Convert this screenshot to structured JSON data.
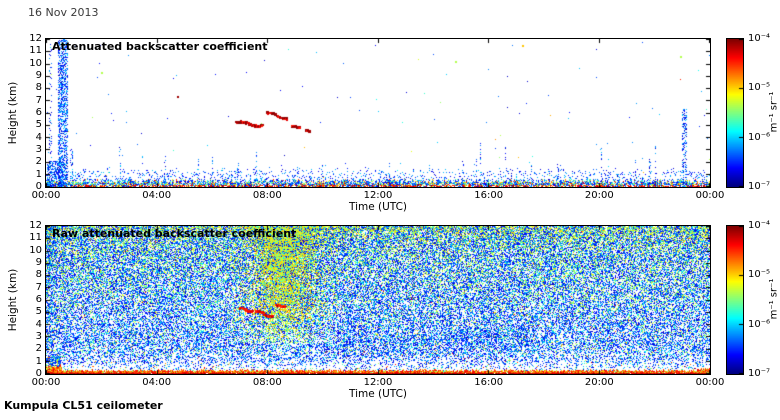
{
  "page": {
    "date_label": "16 Nov 2013",
    "footer_label": "Kumpula CL51 ceilometer"
  },
  "axes": {
    "xlabel": "Time (UTC)",
    "ylabel": "Height (km)",
    "time_ticks": [
      "00:00",
      "04:00",
      "08:00",
      "12:00",
      "16:00",
      "20:00",
      "00:00"
    ],
    "height_ticks": [
      "0",
      "1",
      "2",
      "3",
      "4",
      "5",
      "6",
      "7",
      "8",
      "9",
      "10",
      "11",
      "12"
    ]
  },
  "colorbar": {
    "tick_labels": [
      "10⁻⁴",
      "10⁻⁵",
      "10⁻⁶",
      "10⁻⁷"
    ],
    "unit_label": "m⁻¹ sr⁻¹",
    "colormap": "jet",
    "scale": "log",
    "range_min": "1e-7",
    "range_max": "1e-4"
  },
  "chart_data": [
    {
      "type": "heatmap",
      "title": "Attenuated backscatter coefficient",
      "xlabel": "Time (UTC)",
      "ylabel": "Height (km)",
      "x_range_hours": [
        0,
        24
      ],
      "y_range_km": [
        0,
        12
      ],
      "value_range": [
        "1e-7",
        "1e-4"
      ],
      "colormap": "jet",
      "x_ticks": [
        "00:00",
        "04:00",
        "08:00",
        "12:00",
        "16:00",
        "20:00",
        "00:00"
      ],
      "y_ticks": [
        0,
        1,
        2,
        3,
        4,
        5,
        6,
        7,
        8,
        9,
        10,
        11,
        12
      ],
      "colorbar_ticks": [
        "1e-4",
        "1e-5",
        "1e-6",
        "1e-7"
      ],
      "seed": 20131116,
      "features": {
        "surface_layer": {
          "top_km": 0.5,
          "description": "dense multicolour aerosol/backscatter layer along the ground"
        },
        "streaks": [
          {
            "h0": 0.1,
            "h1": 0.22,
            "top_km": 12,
            "density": 0.16
          },
          {
            "h0": 0.45,
            "h1": 0.78,
            "top_km": 12,
            "density": 0.5
          },
          {
            "h0": 0.02,
            "h1": 0.6,
            "top_km": 2.1,
            "density": 0.5
          },
          {
            "h0": 0.85,
            "h1": 0.98,
            "top_km": 3.2,
            "density": 0.3
          },
          {
            "h0": 23.0,
            "h1": 23.18,
            "top_km": 6.3,
            "density": 0.32
          }
        ],
        "virga_count": 52,
        "noise_dot_count": 160,
        "high_dots": [
          {
            "h": 2.0,
            "z": 9.3,
            "c": "green"
          },
          {
            "h": 14.8,
            "z": 10.2,
            "c": "green"
          },
          {
            "h": 22.9,
            "z": 10.6,
            "c": "green"
          },
          {
            "h": 17.2,
            "z": 11.5,
            "c": "yellow"
          },
          {
            "h": 4.75,
            "z": 7.35,
            "c": "darkred"
          }
        ],
        "cloud_arcs": [
          {
            "h0": 6.85,
            "h1": 7.8,
            "z0": 5.3,
            "z1": 5.05,
            "wave": 0.1
          },
          {
            "h0": 7.95,
            "h1": 8.7,
            "z0": 6.1,
            "z1": 5.6,
            "wave": 0.08
          },
          {
            "h0": 8.85,
            "h1": 9.15,
            "z0": 5.0,
            "z1": 4.9,
            "wave": 0.04
          },
          {
            "h0": 9.35,
            "h1": 9.5,
            "z0": 4.65,
            "z1": 4.6,
            "wave": 0.02
          }
        ]
      }
    },
    {
      "type": "heatmap",
      "title": "Raw attenuated backscatter coefficient",
      "xlabel": "Time (UTC)",
      "ylabel": "Height (km)",
      "x_range_hours": [
        0,
        24
      ],
      "y_range_km": [
        0,
        12
      ],
      "value_range": [
        "1e-7",
        "1e-4"
      ],
      "colormap": "jet",
      "x_ticks": [
        "00:00",
        "04:00",
        "08:00",
        "12:00",
        "16:00",
        "20:00",
        "00:00"
      ],
      "y_ticks": [
        0,
        1,
        2,
        3,
        4,
        5,
        6,
        7,
        8,
        9,
        10,
        11,
        12
      ],
      "colorbar_ticks": [
        "1e-4",
        "1e-5",
        "1e-6",
        "1e-7"
      ],
      "seed": 20131117,
      "features": {
        "surface_band": {
          "top_km": 0.35,
          "description": "saturated red-orange return at the ground"
        },
        "clear_band_km": [
          0.4,
          1.4
        ],
        "plume": {
          "h_center": 8.6,
          "h_sigma": 1.1,
          "z_min": 2.5,
          "description": "enhanced green-yellow noise plume around 07:30-10:00"
        },
        "cloud_arcs": [
          {
            "h0": 6.95,
            "h1": 7.45,
            "z0": 5.4,
            "z1": 5.15,
            "wave": 0.08
          },
          {
            "h0": 7.55,
            "h1": 8.15,
            "z0": 5.15,
            "z1": 4.75,
            "wave": 0.08
          },
          {
            "h0": 8.3,
            "h1": 8.6,
            "z0": 5.65,
            "z1": 5.55,
            "wave": 0.04
          }
        ]
      }
    }
  ]
}
